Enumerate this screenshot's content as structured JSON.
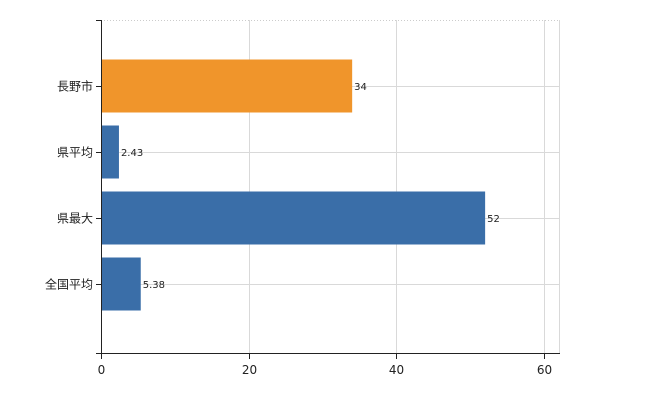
{
  "chart_data": {
    "type": "bar",
    "orientation": "horizontal",
    "categories": [
      "長野市",
      "県平均",
      "県最大",
      "全国平均"
    ],
    "values": [
      34,
      2.43,
      52,
      5.38
    ],
    "value_labels": [
      "34",
      "2.43",
      "52",
      "5.38"
    ],
    "bar_colors": [
      "#f0952b",
      "#3a6ea8",
      "#3a6ea8",
      "#3a6ea8"
    ],
    "xlim": [
      0,
      62
    ],
    "xticks": [
      0,
      20,
      40,
      60
    ],
    "grid": true,
    "legend": "none"
  }
}
